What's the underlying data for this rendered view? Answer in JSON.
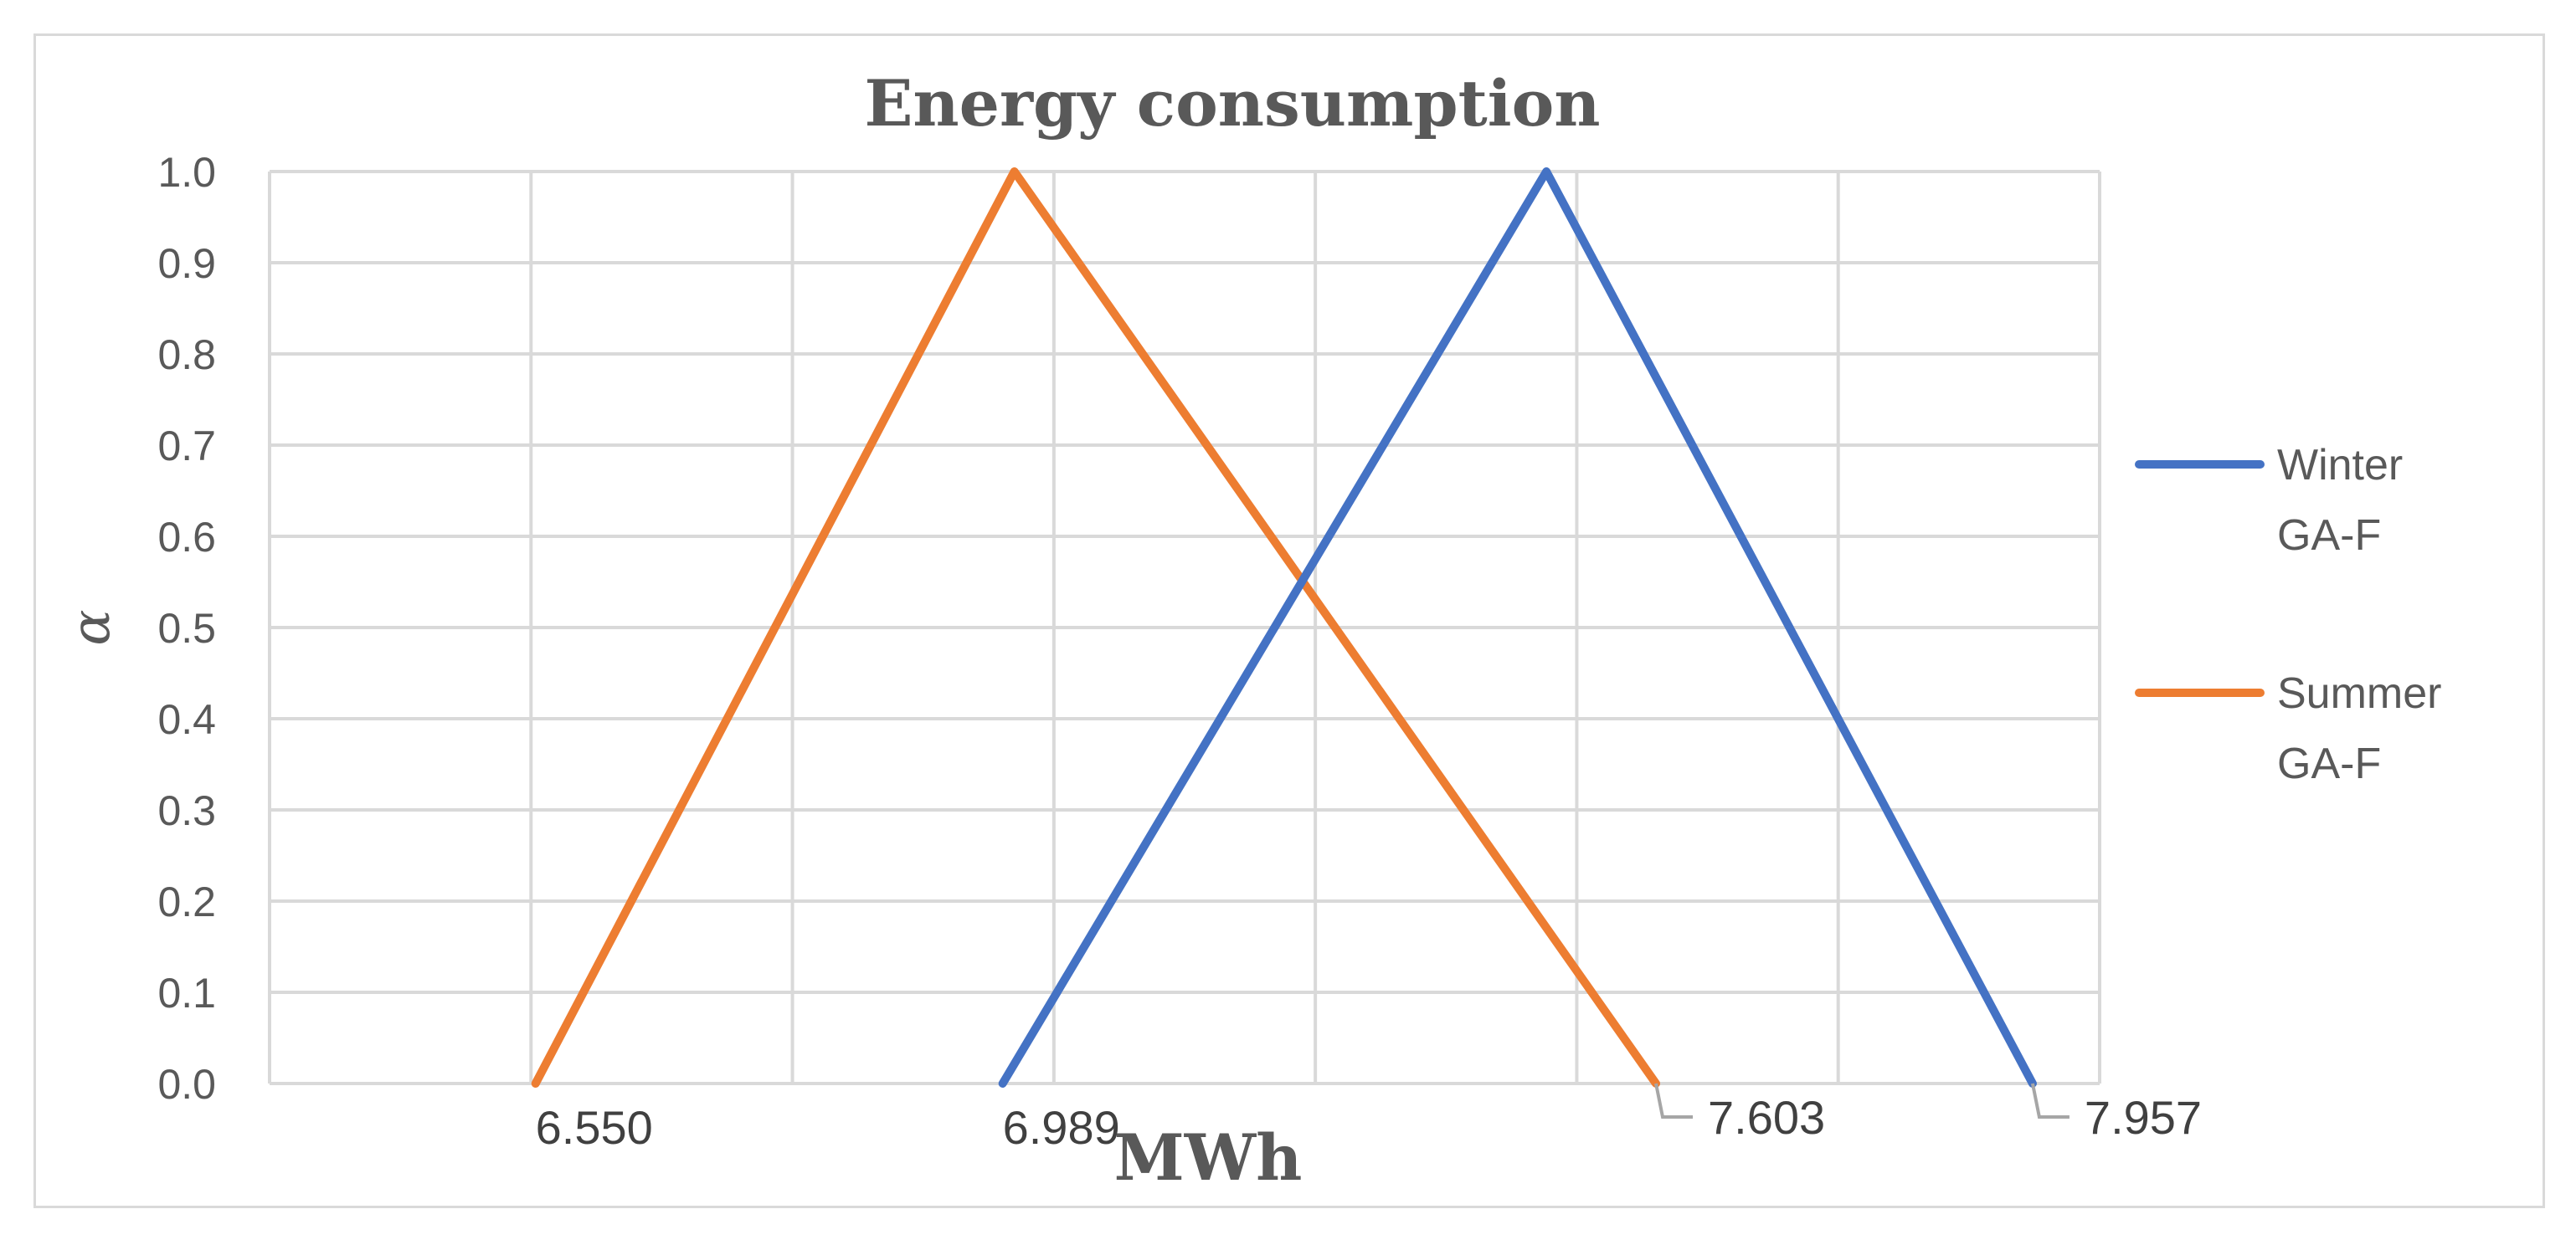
{
  "chart_data": {
    "type": "line",
    "title": "Energy consumption",
    "xlabel": "MWh",
    "ylabel": "α",
    "xlim": [
      6.3,
      8.02
    ],
    "ylim": [
      0,
      1
    ],
    "yticks": [
      "0.0",
      "0.1",
      "0.2",
      "0.3",
      "0.4",
      "0.5",
      "0.6",
      "0.7",
      "0.8",
      "0.9",
      "1.0"
    ],
    "grid": true,
    "legend_position": "right",
    "series": [
      {
        "name": "Winter GA-F",
        "legend_lines": [
          "Winter",
          "GA-F"
        ],
        "color": "#4472c4",
        "x": [
          6.989,
          7.5,
          7.957
        ],
        "y": [
          0,
          1,
          0
        ]
      },
      {
        "name": "Summer GA-F",
        "legend_lines": [
          "Summer",
          "GA-F"
        ],
        "color": "#ed7d31",
        "x": [
          6.55,
          7.0,
          7.603
        ],
        "y": [
          0,
          1,
          0
        ]
      }
    ],
    "data_labels": [
      {
        "text": "6.550",
        "x": 6.55
      },
      {
        "text": "6.989",
        "x": 6.989
      },
      {
        "text": "7.603",
        "x": 7.603,
        "leader": true
      },
      {
        "text": "7.957",
        "x": 7.957,
        "leader": true
      }
    ]
  }
}
